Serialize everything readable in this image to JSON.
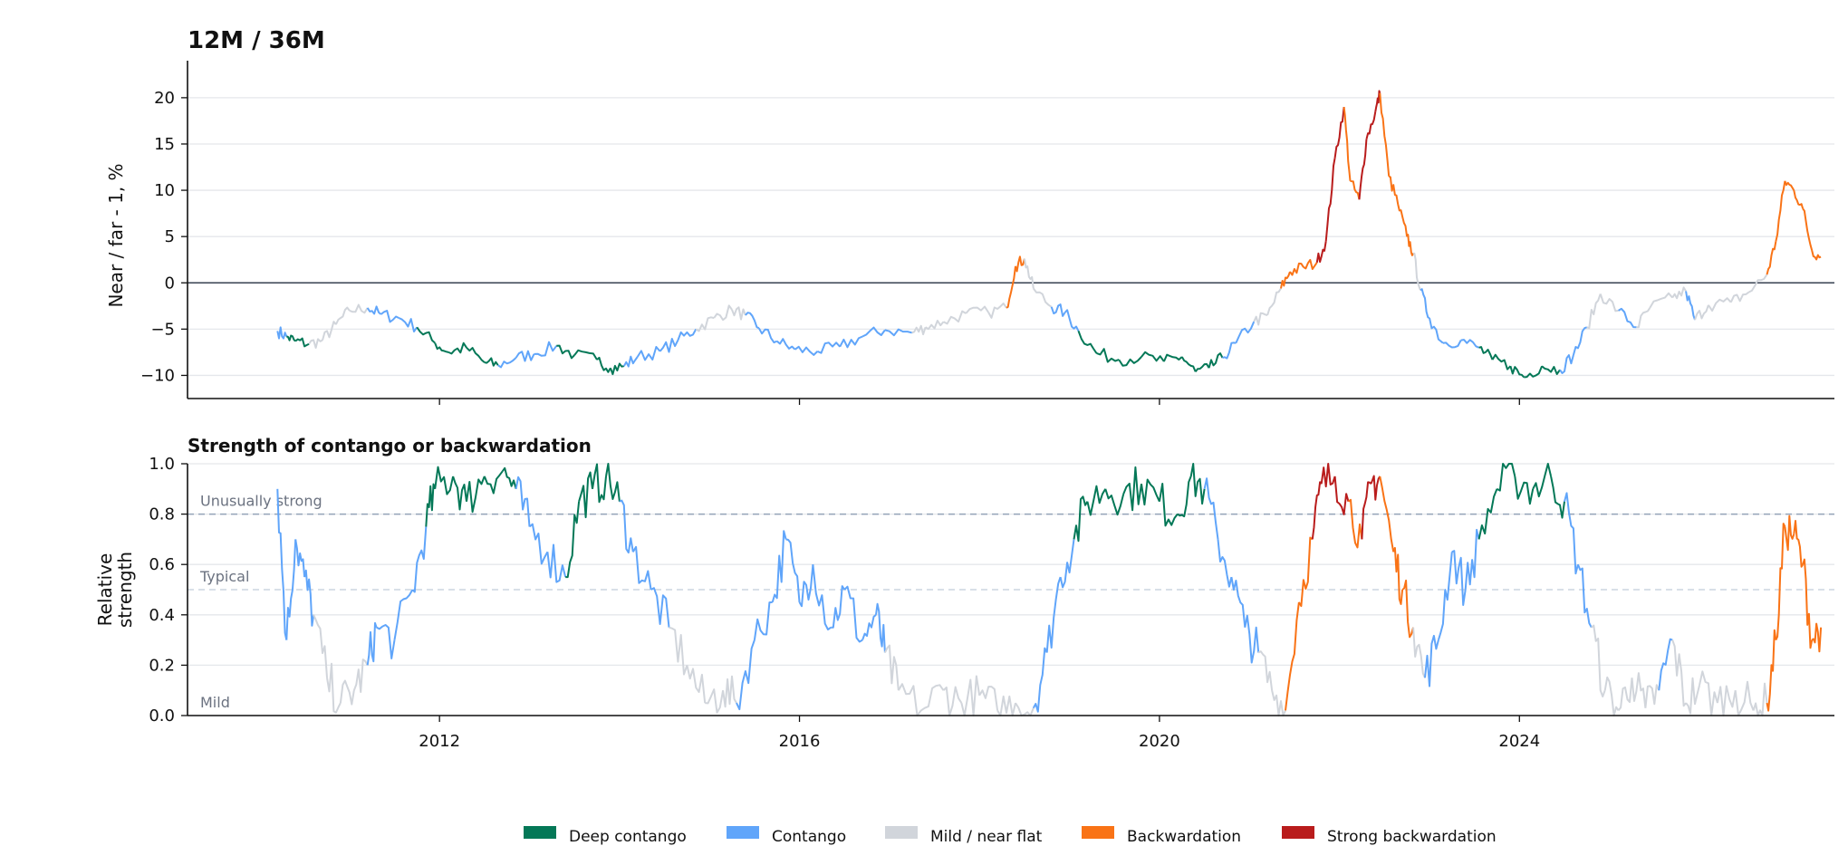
{
  "chart_data": [
    {
      "type": "line",
      "title": "12M / 36M",
      "ylabel": "Near / far - 1, %",
      "ylim": [
        -12.5,
        24
      ],
      "yticks": [
        -10,
        -5,
        0,
        5,
        10,
        15,
        20
      ],
      "ytick_labels": [
        "−10",
        "−5",
        "0",
        "5",
        "10",
        "15",
        "20"
      ],
      "xlim": [
        2009.2,
        2027.5
      ],
      "zero_line": 0,
      "grid": "horizontal",
      "points": [
        [
          2010.2,
          -5.2,
          "c"
        ],
        [
          2010.3,
          -5.8,
          "c"
        ],
        [
          2010.4,
          -6.3,
          "d"
        ],
        [
          2010.55,
          -6.6,
          "d"
        ],
        [
          2010.7,
          -6.2,
          "m"
        ],
        [
          2010.85,
          -4.5,
          "m"
        ],
        [
          2011.0,
          -3.0,
          "m"
        ],
        [
          2011.2,
          -2.7,
          "m"
        ],
        [
          2011.35,
          -3.4,
          "c"
        ],
        [
          2011.55,
          -3.8,
          "c"
        ],
        [
          2011.75,
          -4.8,
          "c"
        ],
        [
          2011.95,
          -6.5,
          "d"
        ],
        [
          2012.1,
          -7.5,
          "d"
        ],
        [
          2012.3,
          -7.0,
          "d"
        ],
        [
          2012.5,
          -8.6,
          "d"
        ],
        [
          2012.65,
          -8.9,
          "d"
        ],
        [
          2012.85,
          -8.1,
          "c"
        ],
        [
          2013.05,
          -7.7,
          "c"
        ],
        [
          2013.3,
          -6.8,
          "c"
        ],
        [
          2013.5,
          -7.8,
          "d"
        ],
        [
          2013.75,
          -8.3,
          "d"
        ],
        [
          2013.9,
          -9.2,
          "d"
        ],
        [
          2014.05,
          -9.0,
          "d"
        ],
        [
          2014.2,
          -8.0,
          "c"
        ],
        [
          2014.45,
          -7.4,
          "c"
        ],
        [
          2014.65,
          -6.2,
          "c"
        ],
        [
          2014.85,
          -5.0,
          "c"
        ],
        [
          2015.05,
          -3.8,
          "m"
        ],
        [
          2015.25,
          -2.9,
          "m"
        ],
        [
          2015.4,
          -3.5,
          "m"
        ],
        [
          2015.55,
          -4.9,
          "c"
        ],
        [
          2015.75,
          -6.3,
          "c"
        ],
        [
          2015.95,
          -7.2,
          "c"
        ],
        [
          2016.2,
          -7.4,
          "c"
        ],
        [
          2016.45,
          -6.9,
          "c"
        ],
        [
          2016.7,
          -5.8,
          "c"
        ],
        [
          2016.95,
          -5.1,
          "c"
        ],
        [
          2017.25,
          -5.4,
          "c"
        ],
        [
          2017.4,
          -4.8,
          "m"
        ],
        [
          2017.6,
          -4.2,
          "m"
        ],
        [
          2017.85,
          -3.3,
          "m"
        ],
        [
          2018.1,
          -3.2,
          "m"
        ],
        [
          2018.3,
          -2.7,
          "m"
        ],
        [
          2018.4,
          1.8,
          "b"
        ],
        [
          2018.5,
          2.6,
          "b"
        ],
        [
          2018.6,
          -0.6,
          "m"
        ],
        [
          2018.8,
          -2.6,
          "m"
        ],
        [
          2018.95,
          -3.2,
          "c"
        ],
        [
          2019.1,
          -5.2,
          "c"
        ],
        [
          2019.3,
          -7.6,
          "d"
        ],
        [
          2019.55,
          -8.3,
          "d"
        ],
        [
          2019.8,
          -8.0,
          "d"
        ],
        [
          2020.05,
          -8.5,
          "d"
        ],
        [
          2020.25,
          -8.0,
          "d"
        ],
        [
          2020.4,
          -9.6,
          "d"
        ],
        [
          2020.55,
          -9.2,
          "d"
        ],
        [
          2020.7,
          -8.1,
          "d"
        ],
        [
          2020.85,
          -6.5,
          "c"
        ],
        [
          2021.05,
          -4.2,
          "c"
        ],
        [
          2021.2,
          -3.5,
          "m"
        ],
        [
          2021.35,
          -0.6,
          "m"
        ],
        [
          2021.45,
          1.2,
          "b"
        ],
        [
          2021.6,
          1.7,
          "b"
        ],
        [
          2021.75,
          2.2,
          "b"
        ],
        [
          2021.85,
          4.5,
          "s"
        ],
        [
          2021.95,
          13.5,
          "s"
        ],
        [
          2022.05,
          19.0,
          "s"
        ],
        [
          2022.12,
          11.0,
          "b"
        ],
        [
          2022.22,
          9.0,
          "b"
        ],
        [
          2022.3,
          15.5,
          "s"
        ],
        [
          2022.4,
          18.5,
          "s"
        ],
        [
          2022.45,
          20.5,
          "s"
        ],
        [
          2022.55,
          11.5,
          "b"
        ],
        [
          2022.65,
          8.5,
          "b"
        ],
        [
          2022.75,
          5.0,
          "b"
        ],
        [
          2022.82,
          3.2,
          "b"
        ],
        [
          2022.9,
          -0.8,
          "m"
        ],
        [
          2023.0,
          -3.8,
          "c"
        ],
        [
          2023.15,
          -6.5,
          "c"
        ],
        [
          2023.35,
          -6.2,
          "c"
        ],
        [
          2023.55,
          -7.0,
          "c"
        ],
        [
          2023.7,
          -8.3,
          "d"
        ],
        [
          2023.9,
          -9.0,
          "d"
        ],
        [
          2024.05,
          -10.2,
          "d"
        ],
        [
          2024.25,
          -9.0,
          "d"
        ],
        [
          2024.45,
          -9.4,
          "d"
        ],
        [
          2024.6,
          -7.8,
          "c"
        ],
        [
          2024.75,
          -4.8,
          "c"
        ],
        [
          2024.9,
          -1.2,
          "m"
        ],
        [
          2025.1,
          -3.0,
          "m"
        ],
        [
          2025.3,
          -4.8,
          "c"
        ],
        [
          2025.45,
          -2.7,
          "m"
        ],
        [
          2025.7,
          -1.6,
          "m"
        ],
        [
          2025.85,
          -0.9,
          "m"
        ],
        [
          2025.95,
          -4.0,
          "c"
        ],
        [
          2026.1,
          -2.4,
          "m"
        ],
        [
          2026.35,
          -2.1,
          "m"
        ],
        [
          2026.55,
          -1.0,
          "m"
        ],
        [
          2026.75,
          0.9,
          "m"
        ],
        [
          2026.85,
          4.5,
          "b"
        ],
        [
          2026.95,
          11.0,
          "b"
        ],
        [
          2027.05,
          10.0,
          "b"
        ],
        [
          2027.15,
          8.0,
          "b"
        ],
        [
          2027.25,
          3.5,
          "b"
        ],
        [
          2027.35,
          2.8,
          "b"
        ]
      ]
    },
    {
      "type": "line",
      "title": "Strength of contango or backwardation",
      "ylabel": "Relative strength",
      "ylim": [
        0,
        1
      ],
      "yticks": [
        0.0,
        0.2,
        0.4,
        0.6,
        0.8,
        1.0
      ],
      "ytick_labels": [
        "0.0",
        "0.2",
        "0.4",
        "0.6",
        "0.8",
        "1.0"
      ],
      "xlim": [
        2009.2,
        2027.5
      ],
      "xticks": [
        2012,
        2016,
        2020,
        2024
      ],
      "xtick_labels": [
        "2012",
        "2016",
        "2020",
        "2024"
      ],
      "grid": "horizontal",
      "reference_lines": [
        {
          "y": 0.8,
          "label": "Unusually strong"
        },
        {
          "y": 0.5,
          "label": "Typical"
        },
        {
          "y": 0.0,
          "label": "Mild"
        }
      ],
      "points": [
        [
          2010.2,
          0.9,
          "d"
        ],
        [
          2010.3,
          0.3,
          "c"
        ],
        [
          2010.4,
          0.7,
          "c"
        ],
        [
          2010.5,
          0.55,
          "c"
        ],
        [
          2010.6,
          0.4,
          "c"
        ],
        [
          2010.75,
          0.15,
          "m"
        ],
        [
          2010.9,
          0.05,
          "m"
        ],
        [
          2011.05,
          0.1,
          "m"
        ],
        [
          2011.2,
          0.2,
          "m"
        ],
        [
          2011.3,
          0.35,
          "c"
        ],
        [
          2011.5,
          0.3,
          "c"
        ],
        [
          2011.7,
          0.5,
          "c"
        ],
        [
          2011.85,
          0.75,
          "c"
        ],
        [
          2011.95,
          0.9,
          "d"
        ],
        [
          2012.15,
          0.95,
          "d"
        ],
        [
          2012.3,
          0.85,
          "d"
        ],
        [
          2012.5,
          0.95,
          "d"
        ],
        [
          2012.7,
          0.97,
          "d"
        ],
        [
          2012.85,
          0.9,
          "d"
        ],
        [
          2013.0,
          0.75,
          "c"
        ],
        [
          2013.2,
          0.65,
          "c"
        ],
        [
          2013.4,
          0.55,
          "c"
        ],
        [
          2013.55,
          0.85,
          "d"
        ],
        [
          2013.7,
          0.9,
          "d"
        ],
        [
          2013.85,
          0.95,
          "d"
        ],
        [
          2014.0,
          0.85,
          "d"
        ],
        [
          2014.15,
          0.65,
          "c"
        ],
        [
          2014.35,
          0.5,
          "c"
        ],
        [
          2014.55,
          0.35,
          "c"
        ],
        [
          2014.75,
          0.2,
          "m"
        ],
        [
          2014.95,
          0.05,
          "m"
        ],
        [
          2015.15,
          0.1,
          "m"
        ],
        [
          2015.3,
          0.05,
          "m"
        ],
        [
          2015.5,
          0.3,
          "c"
        ],
        [
          2015.7,
          0.45,
          "c"
        ],
        [
          2015.85,
          0.7,
          "c"
        ],
        [
          2016.0,
          0.45,
          "c"
        ],
        [
          2016.15,
          0.6,
          "c"
        ],
        [
          2016.35,
          0.35,
          "c"
        ],
        [
          2016.5,
          0.5,
          "c"
        ],
        [
          2016.7,
          0.3,
          "c"
        ],
        [
          2016.85,
          0.4,
          "c"
        ],
        [
          2016.95,
          0.25,
          "c"
        ],
        [
          2017.1,
          0.1,
          "m"
        ],
        [
          2017.35,
          0.02,
          "m"
        ],
        [
          2017.6,
          0.1,
          "m"
        ],
        [
          2017.8,
          0.05,
          "m"
        ],
        [
          2018.0,
          0.08,
          "m"
        ],
        [
          2018.2,
          0.02,
          "m"
        ],
        [
          2018.4,
          0.05,
          "m"
        ],
        [
          2018.6,
          0.03,
          "m"
        ],
        [
          2018.75,
          0.25,
          "c"
        ],
        [
          2018.9,
          0.55,
          "c"
        ],
        [
          2019.05,
          0.7,
          "c"
        ],
        [
          2019.2,
          0.85,
          "d"
        ],
        [
          2019.4,
          0.9,
          "d"
        ],
        [
          2019.6,
          0.88,
          "d"
        ],
        [
          2019.8,
          0.92,
          "d"
        ],
        [
          2020.0,
          0.85,
          "d"
        ],
        [
          2020.2,
          0.8,
          "d"
        ],
        [
          2020.35,
          0.95,
          "d"
        ],
        [
          2020.5,
          0.9,
          "d"
        ],
        [
          2020.65,
          0.7,
          "c"
        ],
        [
          2020.8,
          0.55,
          "c"
        ],
        [
          2020.95,
          0.35,
          "c"
        ],
        [
          2021.1,
          0.25,
          "c"
        ],
        [
          2021.25,
          0.1,
          "m"
        ],
        [
          2021.4,
          0.02,
          "m"
        ],
        [
          2021.55,
          0.45,
          "b"
        ],
        [
          2021.7,
          0.7,
          "b"
        ],
        [
          2021.8,
          0.92,
          "s"
        ],
        [
          2021.95,
          0.95,
          "s"
        ],
        [
          2022.1,
          0.85,
          "s"
        ],
        [
          2022.25,
          0.7,
          "b"
        ],
        [
          2022.35,
          0.92,
          "s"
        ],
        [
          2022.45,
          0.95,
          "s"
        ],
        [
          2022.6,
          0.65,
          "b"
        ],
        [
          2022.7,
          0.5,
          "b"
        ],
        [
          2022.82,
          0.35,
          "b"
        ],
        [
          2022.95,
          0.15,
          "m"
        ],
        [
          2023.1,
          0.3,
          "c"
        ],
        [
          2023.25,
          0.65,
          "c"
        ],
        [
          2023.4,
          0.5,
          "c"
        ],
        [
          2023.55,
          0.7,
          "c"
        ],
        [
          2023.75,
          0.9,
          "d"
        ],
        [
          2023.95,
          0.95,
          "d"
        ],
        [
          2024.15,
          0.9,
          "d"
        ],
        [
          2024.35,
          0.95,
          "d"
        ],
        [
          2024.5,
          0.85,
          "d"
        ],
        [
          2024.65,
          0.6,
          "c"
        ],
        [
          2024.8,
          0.35,
          "c"
        ],
        [
          2024.95,
          0.1,
          "m"
        ],
        [
          2025.1,
          0.02,
          "m"
        ],
        [
          2025.25,
          0.15,
          "m"
        ],
        [
          2025.4,
          0.03,
          "m"
        ],
        [
          2025.55,
          0.1,
          "m"
        ],
        [
          2025.7,
          0.3,
          "c"
        ],
        [
          2025.85,
          0.05,
          "m"
        ],
        [
          2026.0,
          0.12,
          "m"
        ],
        [
          2026.2,
          0.05,
          "m"
        ],
        [
          2026.4,
          0.1,
          "m"
        ],
        [
          2026.6,
          0.02,
          "m"
        ],
        [
          2026.75,
          0.05,
          "m"
        ],
        [
          2026.85,
          0.3,
          "b"
        ],
        [
          2026.95,
          0.75,
          "b"
        ],
        [
          2027.05,
          0.72,
          "b"
        ],
        [
          2027.15,
          0.6,
          "b"
        ],
        [
          2027.25,
          0.3,
          "b"
        ],
        [
          2027.35,
          0.35,
          "b"
        ]
      ]
    }
  ],
  "legend": {
    "placement": "bottom-center",
    "items": [
      {
        "key": "d",
        "label": "Deep contango",
        "color": "#047857"
      },
      {
        "key": "c",
        "label": "Contango",
        "color": "#60a5fa"
      },
      {
        "key": "m",
        "label": "Mild / near flat",
        "color": "#d1d5db"
      },
      {
        "key": "b",
        "label": "Backwardation",
        "color": "#f97316"
      },
      {
        "key": "s",
        "label": "Strong backwardation",
        "color": "#b91c1c"
      }
    ]
  },
  "colors": {
    "grid": "#e5e7eb",
    "zero_line": "#374151",
    "strong_ref_line": "#94a3b8",
    "typical_ref_line": "#cbd5e1",
    "axis": "#111111"
  }
}
